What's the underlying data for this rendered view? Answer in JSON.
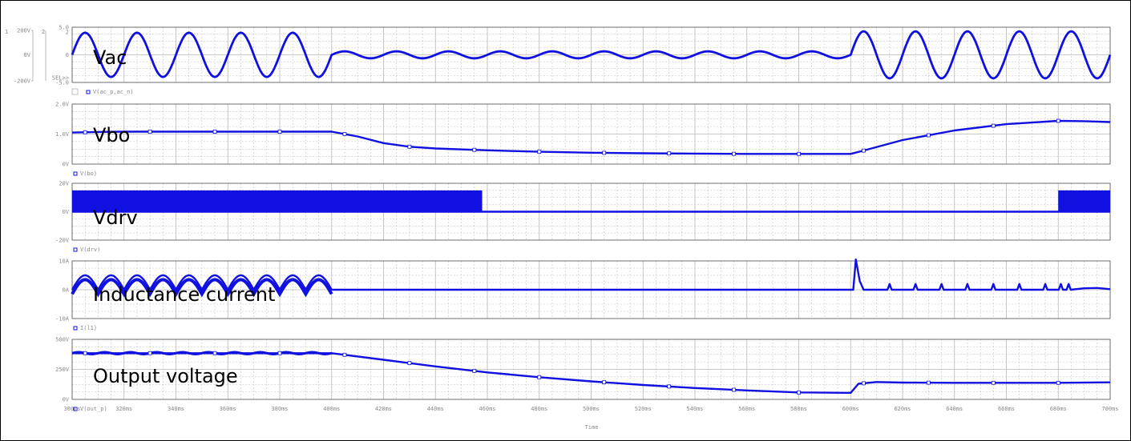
{
  "chart_data": [
    {
      "type": "line",
      "signal": "Vac",
      "legend": "V(ac_p,ac_n)",
      "yticks_primary": [
        "5.0",
        "2",
        "0",
        "SEL>>",
        "-5.0"
      ],
      "yticks_outer": [
        "200V",
        "0V",
        "-200V"
      ],
      "outer_axis_markers": [
        "1",
        "2"
      ],
      "ylim": [
        -200,
        200
      ],
      "unit": "V",
      "segments": [
        {
          "t_range": [
            300,
            400
          ],
          "shape": "sine",
          "amplitude": 160,
          "period_ms": 20
        },
        {
          "t_range": [
            400,
            600
          ],
          "shape": "sine",
          "amplitude": 25,
          "period_ms": 20,
          "note_value_offset": 0
        },
        {
          "t_range": [
            600,
            700
          ],
          "shape": "sine",
          "amplitude": 170,
          "period_ms": 20
        }
      ]
    },
    {
      "type": "line",
      "signal": "Vbo",
      "legend": "V(bo)",
      "yticks": [
        "2.0V",
        "1.0V",
        "0V"
      ],
      "ylim": [
        0,
        2
      ],
      "unit": "V",
      "x": [
        300,
        310,
        320,
        340,
        360,
        380,
        400,
        410,
        420,
        430,
        440,
        460,
        480,
        500,
        520,
        540,
        560,
        580,
        595,
        600,
        605,
        620,
        640,
        660,
        680,
        690,
        700
      ],
      "y": [
        1.05,
        1.07,
        1.08,
        1.08,
        1.08,
        1.08,
        1.08,
        0.92,
        0.7,
        0.58,
        0.52,
        0.46,
        0.41,
        0.38,
        0.36,
        0.35,
        0.34,
        0.34,
        0.34,
        0.34,
        0.45,
        0.8,
        1.12,
        1.33,
        1.44,
        1.43,
        1.4
      ]
    },
    {
      "type": "line",
      "signal": "Vdrv",
      "legend": "V(drv)",
      "yticks": [
        "20V",
        "0V",
        "-20V"
      ],
      "ylim": [
        -20,
        20
      ],
      "unit": "V",
      "switching_high": 15,
      "switching_low": 0,
      "switching_ranges": [
        [
          300,
          458
        ],
        [
          680,
          700
        ]
      ],
      "idle_level": 0
    },
    {
      "type": "line",
      "signal": "Inductance current",
      "legend": "I(l1)",
      "yticks": [
        "10A",
        "0A",
        "-10A"
      ],
      "ylim": [
        -10,
        10
      ],
      "unit": "A",
      "humps_range": [
        300,
        400
      ],
      "hump_period_ms": 10,
      "hump_peak": 5,
      "spike_at_ms": 602,
      "spike_peak": 10.5,
      "small_spikes_ms": [
        615,
        625,
        635,
        645,
        655,
        665,
        675,
        681,
        684
      ],
      "small_spike_peak": 2
    },
    {
      "type": "line",
      "signal": "Output voltage",
      "legend": "V(out_p)",
      "yticks": [
        "500V",
        "250V",
        "0V"
      ],
      "ylim": [
        0,
        500
      ],
      "unit": "V",
      "x": [
        300,
        400,
        420,
        440,
        460,
        480,
        500,
        520,
        540,
        560,
        580,
        598,
        600,
        603,
        610,
        620,
        640,
        660,
        680,
        700
      ],
      "y": [
        385,
        385,
        330,
        275,
        225,
        185,
        150,
        120,
        95,
        75,
        58,
        55,
        55,
        130,
        145,
        140,
        138,
        138,
        138,
        142
      ]
    }
  ],
  "annotations": {
    "vac": "Vac",
    "vbo": "Vbo",
    "vdrv": "Vdrv",
    "il": "Inductance current",
    "vout": "Output voltage"
  },
  "x_axis": {
    "ticks": [
      "300ms",
      "320ms",
      "340ms",
      "360ms",
      "380ms",
      "400ms",
      "420ms",
      "440ms",
      "460ms",
      "480ms",
      "500ms",
      "520ms",
      "540ms",
      "560ms",
      "580ms",
      "600ms",
      "620ms",
      "640ms",
      "660ms",
      "680ms",
      "700ms"
    ],
    "label": "Time",
    "xlim": [
      300,
      700
    ]
  },
  "colors": {
    "trace": "#1010e0",
    "grid": "#b8b8b8",
    "frame": "#555555"
  },
  "grid": true
}
